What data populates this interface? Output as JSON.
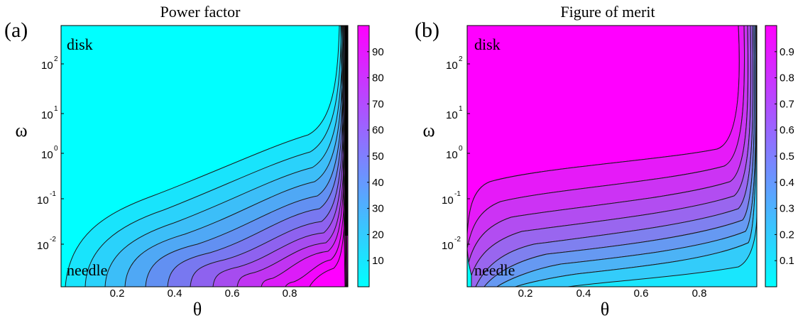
{
  "chart_data": [
    {
      "type": "heatmap",
      "panel_label": "(a)",
      "title": "Power factor",
      "xlabel": "θ",
      "ylabel": "ω",
      "xlim": [
        0,
        1
      ],
      "ylim": [
        0.001,
        1000
      ],
      "y_scale": "log",
      "x_ticks": [
        "0.2",
        "0.4",
        "0.6",
        "0.8"
      ],
      "y_ticks": [
        "10^-2",
        "10^-1",
        "10^0",
        "10^1",
        "10^2"
      ],
      "colorbar": {
        "min": 0,
        "max": 100,
        "ticks": [
          "10",
          "20",
          "30",
          "40",
          "50",
          "60",
          "70",
          "80",
          "90"
        ]
      },
      "colormap": [
        "#00ffff",
        "#ff00ff"
      ],
      "contour_color": "#1a1a1a",
      "annotations": [
        "disk",
        "needle"
      ],
      "peak": {
        "theta": 0.97,
        "omega": 0.03,
        "value": 97
      }
    },
    {
      "type": "heatmap",
      "panel_label": "(b)",
      "title": "Figure of merit",
      "xlabel": "θ",
      "ylabel": "ω",
      "xlim": [
        0,
        1
      ],
      "ylim": [
        0.001,
        1000
      ],
      "y_scale": "log",
      "x_ticks": [
        "0.2",
        "0.4",
        "0.6",
        "0.8"
      ],
      "y_ticks": [
        "10^-2",
        "10^-1",
        "10^0",
        "10^1",
        "10^2"
      ],
      "colorbar": {
        "min": 0,
        "max": 1,
        "ticks": [
          "0.1",
          "0.2",
          "0.3",
          "0.4",
          "0.5",
          "0.6",
          "0.7",
          "0.8",
          "0.9"
        ]
      },
      "colormap": [
        "#00ffff",
        "#ff00ff"
      ],
      "contour_color": "#1a1a1a",
      "annotations": [
        "disk",
        "needle"
      ],
      "peak": {
        "theta": 0.5,
        "omega": 1000,
        "value": 0.99
      }
    }
  ]
}
